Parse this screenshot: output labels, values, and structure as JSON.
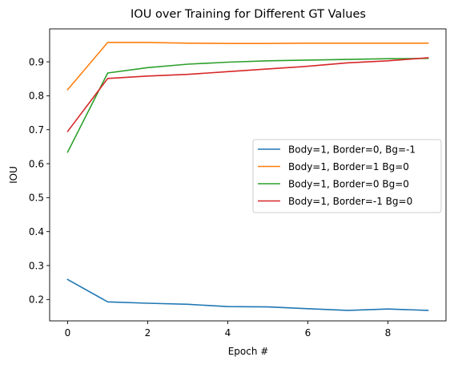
{
  "chart_data": {
    "type": "line",
    "title": "IOU over Training for Different GT Values",
    "xlabel": "Epoch #",
    "ylabel": "IOU",
    "x": [
      0,
      1,
      2,
      3,
      4,
      5,
      6,
      7,
      8,
      9
    ],
    "xlim": [
      -0.45,
      9.45
    ],
    "ylim": [
      0.137,
      0.997
    ],
    "xticks": [
      0,
      2,
      4,
      6,
      8
    ],
    "yticks": [
      0.2,
      0.3,
      0.4,
      0.5,
      0.6,
      0.7,
      0.8,
      0.9
    ],
    "grid": false,
    "legend_position": "center-right",
    "series": [
      {
        "name": "Body=1, Border=0, Bg=-1",
        "color": "#1f77b4",
        "values": [
          0.259,
          0.193,
          0.189,
          0.186,
          0.179,
          0.178,
          0.173,
          0.168,
          0.172,
          0.168
        ]
      },
      {
        "name": "Body=1, Border=1 Bg=0",
        "color": "#ff7f0e",
        "values": [
          0.818,
          0.957,
          0.957,
          0.955,
          0.954,
          0.954,
          0.955,
          0.955,
          0.955,
          0.955
        ]
      },
      {
        "name": "Body=1, Border=0 Bg=0",
        "color": "#2ca02c",
        "values": [
          0.634,
          0.867,
          0.883,
          0.893,
          0.899,
          0.903,
          0.905,
          0.907,
          0.909,
          0.91
        ]
      },
      {
        "name": "Body=1, Border=-1 Bg=0",
        "color": "#d62728",
        "values": [
          0.695,
          0.851,
          0.858,
          0.863,
          0.871,
          0.879,
          0.887,
          0.897,
          0.903,
          0.912
        ]
      }
    ]
  }
}
